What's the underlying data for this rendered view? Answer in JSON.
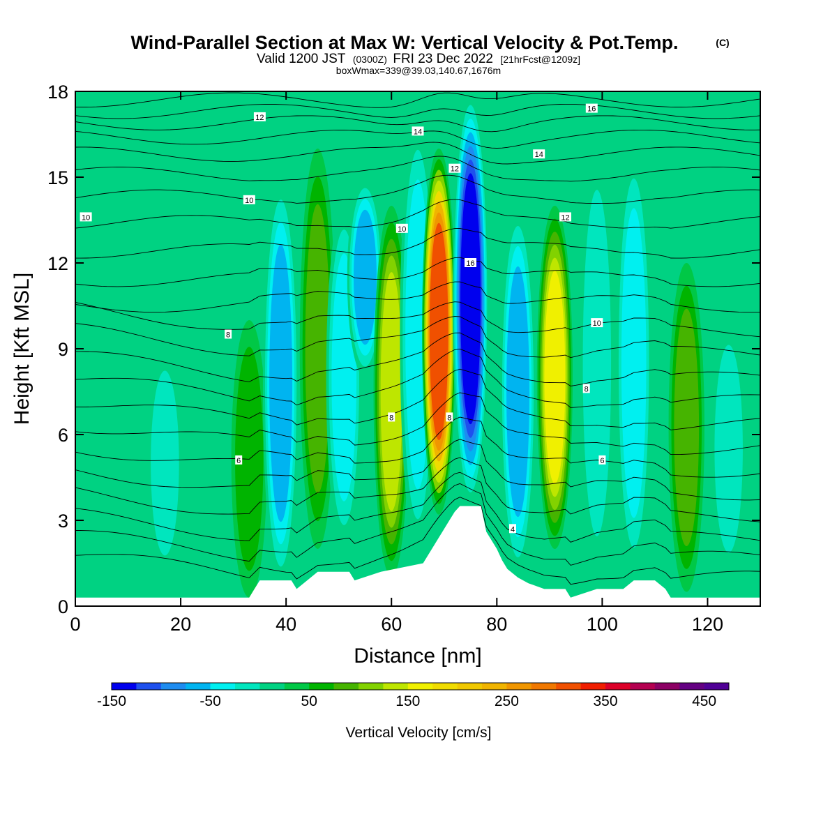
{
  "chart_data": {
    "type": "heatmap",
    "title": "Wind-Parallel Section at Max W: Vertical Velocity & Pot.Temp.",
    "title_mark": "(C)",
    "subtitle_parts": [
      "Valid 1200 JST",
      "(0300Z)",
      "FRI 23 Dec 2022",
      "[21hrFcst@1209z]"
    ],
    "subtitle2": "boxWmax=339@39.03,140.67,1676m",
    "xlabel": "Distance [nm]",
    "ylabel": "Height [Kft MSL]",
    "xlim": [
      0,
      130
    ],
    "ylim": [
      0,
      18
    ],
    "xticks": [
      0,
      20,
      40,
      60,
      80,
      100,
      120
    ],
    "yticks": [
      0,
      3,
      6,
      9,
      12,
      15,
      18
    ],
    "colorbar": {
      "label": "Vertical Velocity [cm/s]",
      "min": -150,
      "max": 475,
      "step": 25,
      "ticks": [
        -150,
        -50,
        50,
        150,
        250,
        350,
        450
      ],
      "colors": [
        "#0000ee",
        "#1e50ee",
        "#1e8cf0",
        "#00b4f0",
        "#00f0f0",
        "#00e6be",
        "#00d282",
        "#00c846",
        "#00b400",
        "#46b400",
        "#82d200",
        "#bee600",
        "#f0f000",
        "#f0dc00",
        "#f0c800",
        "#f0b400",
        "#f09600",
        "#f07800",
        "#f05000",
        "#f01e00",
        "#dc0028",
        "#b40050",
        "#8c0064",
        "#640082",
        "#500096"
      ]
    },
    "vertical_velocity_columns": [
      {
        "x": 7,
        "peak_cm_s": 10,
        "z": [
          2,
          12
        ]
      },
      {
        "x": 17,
        "peak_cm_s": -25,
        "z": [
          1,
          9
        ]
      },
      {
        "x": 27,
        "peak_cm_s": 20,
        "z": [
          1,
          10
        ]
      },
      {
        "x": 33,
        "peak_cm_s": 60,
        "z": [
          0.3,
          10
        ]
      },
      {
        "x": 39,
        "peak_cm_s": -75,
        "z": [
          0.6,
          15
        ]
      },
      {
        "x": 46,
        "peak_cm_s": 80,
        "z": [
          2,
          16
        ]
      },
      {
        "x": 51,
        "peak_cm_s": -55,
        "z": [
          2,
          14
        ]
      },
      {
        "x": 55,
        "peak_cm_s": -90,
        "z": [
          8,
          15
        ]
      },
      {
        "x": 60,
        "peak_cm_s": 140,
        "z": [
          1,
          14
        ]
      },
      {
        "x": 65,
        "peak_cm_s": -70,
        "z": [
          2,
          17
        ]
      },
      {
        "x": 69,
        "peak_cm_s": 339,
        "z": [
          3.2,
          16
        ]
      },
      {
        "x": 75,
        "peak_cm_s": -150,
        "z": [
          3.5,
          18
        ]
      },
      {
        "x": 84,
        "peak_cm_s": -90,
        "z": [
          1,
          14
        ]
      },
      {
        "x": 91,
        "peak_cm_s": 150,
        "z": [
          2,
          14
        ]
      },
      {
        "x": 99,
        "peak_cm_s": -40,
        "z": [
          1,
          16
        ]
      },
      {
        "x": 106,
        "peak_cm_s": -60,
        "z": [
          1,
          16
        ]
      },
      {
        "x": 116,
        "peak_cm_s": 80,
        "z": [
          0.5,
          12
        ]
      },
      {
        "x": 124,
        "peak_cm_s": -30,
        "z": [
          1,
          10
        ]
      }
    ],
    "terrain": [
      [
        0,
        0.3
      ],
      [
        33,
        0.3
      ],
      [
        34,
        0.6
      ],
      [
        35,
        0.9
      ],
      [
        41,
        0.9
      ],
      [
        42,
        0.6
      ],
      [
        44,
        0.9
      ],
      [
        46,
        1.2
      ],
      [
        52,
        1.2
      ],
      [
        53,
        0.9
      ],
      [
        58,
        1.2
      ],
      [
        66,
        1.5
      ],
      [
        67,
        1.8
      ],
      [
        68,
        2.1
      ],
      [
        69,
        2.4
      ],
      [
        70,
        2.7
      ],
      [
        71,
        3.0
      ],
      [
        72,
        3.3
      ],
      [
        73,
        3.5
      ],
      [
        77,
        3.5
      ],
      [
        78,
        2.6
      ],
      [
        79,
        2.3
      ],
      [
        80,
        2.0
      ],
      [
        81,
        1.6
      ],
      [
        82,
        1.3
      ],
      [
        84,
        1.0
      ],
      [
        86,
        0.8
      ],
      [
        89,
        0.6
      ],
      [
        93,
        0.6
      ],
      [
        94,
        0.3
      ],
      [
        99,
        0.6
      ],
      [
        104,
        0.6
      ],
      [
        106,
        0.9
      ],
      [
        110,
        0.9
      ],
      [
        112,
        0.6
      ],
      [
        113,
        0.3
      ],
      [
        130,
        0.3
      ]
    ],
    "theta_contour_labels": [
      {
        "label": "4",
        "x": 83,
        "y": 2.7
      },
      {
        "label": "6",
        "x": 31,
        "y": 5.1
      },
      {
        "label": "6",
        "x": 100,
        "y": 5.1
      },
      {
        "label": "8",
        "x": 29,
        "y": 9.5
      },
      {
        "label": "8",
        "x": 60,
        "y": 6.6
      },
      {
        "label": "8",
        "x": 71,
        "y": 6.6
      },
      {
        "label": "8",
        "x": 97,
        "y": 7.6
      },
      {
        "label": "10",
        "x": 2,
        "y": 13.6
      },
      {
        "label": "10",
        "x": 33,
        "y": 14.2
      },
      {
        "label": "10",
        "x": 62,
        "y": 13.2
      },
      {
        "label": "10",
        "x": 99,
        "y": 9.9
      },
      {
        "label": "12",
        "x": 35,
        "y": 17.1
      },
      {
        "label": "12",
        "x": 72,
        "y": 15.3
      },
      {
        "label": "12",
        "x": 93,
        "y": 13.6
      },
      {
        "label": "14",
        "x": 65,
        "y": 16.6
      },
      {
        "label": "14",
        "x": 88,
        "y": 15.8
      },
      {
        "label": "16",
        "x": 75,
        "y": 12.0
      },
      {
        "label": "16",
        "x": 98,
        "y": 17.4
      }
    ]
  }
}
